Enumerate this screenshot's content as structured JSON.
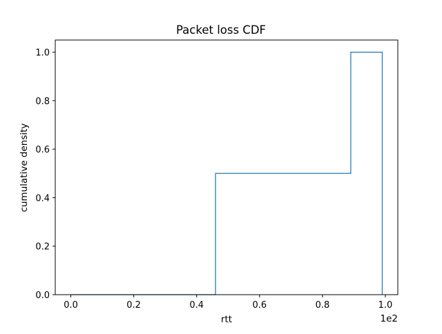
{
  "chart_data": {
    "type": "step",
    "title": "Packet loss CDF",
    "xlabel": "rtt",
    "ylabel": "cumulative density",
    "x_offset_text": "1e2",
    "xlim": [
      -0.0495,
      1.0395
    ],
    "ylim": [
      0.0,
      1.05
    ],
    "x_ticks": [
      0.0,
      0.2,
      0.4,
      0.6,
      0.8,
      1.0
    ],
    "x_tick_labels": [
      "0.0",
      "0.2",
      "0.4",
      "0.6",
      "0.8",
      "1.0"
    ],
    "y_ticks": [
      0.0,
      0.2,
      0.4,
      0.6,
      0.8,
      1.0
    ],
    "y_tick_labels": [
      "0.0",
      "0.2",
      "0.4",
      "0.6",
      "0.8",
      "1.0"
    ],
    "grid": false,
    "legend": "none",
    "series": [
      {
        "color": "#1f77b4",
        "x": [
          0.0,
          0.46,
          0.46,
          0.89,
          0.89,
          0.99,
          0.99
        ],
        "y": [
          0.0,
          0.0,
          0.5,
          0.5,
          1.0,
          1.0,
          0.0
        ]
      }
    ]
  }
}
